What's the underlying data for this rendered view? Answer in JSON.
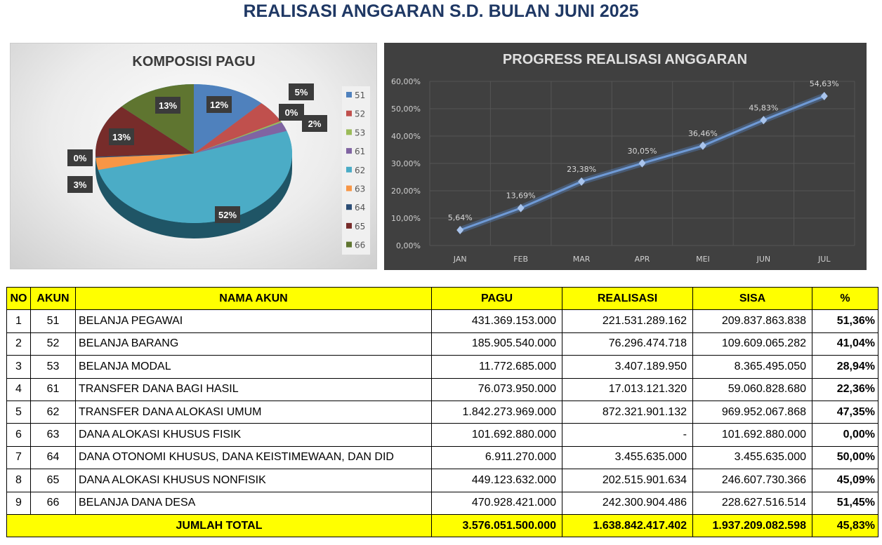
{
  "title": "REALISASI ANGGARAN S.D. BULAN JUNI 2025",
  "chart_data": [
    {
      "type": "pie",
      "title": "KOMPOSISI PAGU",
      "categories": [
        "51",
        "52",
        "53",
        "61",
        "62",
        "63",
        "64",
        "65",
        "66"
      ],
      "values": [
        431369153000,
        185905540000,
        11772685000,
        76073950000,
        1842273969000,
        101692880000,
        6911270000,
        449123632000,
        470928421000
      ],
      "labels": [
        "12%",
        "5%",
        "0%",
        "2%",
        "52%",
        "3%",
        "0%",
        "13%",
        "13%"
      ],
      "colors": [
        "#4f81bd",
        "#c0504d",
        "#9bbb59",
        "#8064a2",
        "#4bacc6",
        "#f79646",
        "#2c4d75",
        "#772c2a",
        "#5f7530"
      ],
      "legend": "right"
    },
    {
      "type": "line",
      "title": "PROGRESS REALISASI ANGGARAN",
      "categories": [
        "JAN",
        "FEB",
        "MAR",
        "APR",
        "MEI",
        "JUN",
        "JUL"
      ],
      "values": [
        5.64,
        13.69,
        23.38,
        30.05,
        36.46,
        45.83,
        54.63
      ],
      "labels": [
        "5,64%",
        "13,69%",
        "23,38%",
        "30,05%",
        "36,46%",
        "45,83%",
        "54,63%"
      ],
      "yticks": [
        "0,00%",
        "10,00%",
        "20,00%",
        "30,00%",
        "40,00%",
        "50,00%",
        "60,00%"
      ],
      "ylim": [
        0,
        60
      ],
      "grid": true,
      "color": "#6f9ad6"
    }
  ],
  "table": {
    "headers": [
      "NO",
      "AKUN",
      "NAMA AKUN",
      "PAGU",
      "REALISASI",
      "SISA",
      "%"
    ],
    "rows": [
      [
        "1",
        "51",
        "BELANJA PEGAWAI",
        "431.369.153.000",
        "221.531.289.162",
        "209.837.863.838",
        "51,36%"
      ],
      [
        "2",
        "52",
        "BELANJA BARANG",
        "185.905.540.000",
        "76.296.474.718",
        "109.609.065.282",
        "41,04%"
      ],
      [
        "3",
        "53",
        "BELANJA MODAL",
        "11.772.685.000",
        "3.407.189.950",
        "8.365.495.050",
        "28,94%"
      ],
      [
        "4",
        "61",
        "TRANSFER DANA BAGI HASIL",
        "76.073.950.000",
        "17.013.121.320",
        "59.060.828.680",
        "22,36%"
      ],
      [
        "5",
        "62",
        "TRANSFER DANA ALOKASI UMUM",
        "1.842.273.969.000",
        "872.321.901.132",
        "969.952.067.868",
        "47,35%"
      ],
      [
        "6",
        "63",
        "DANA ALOKASI KHUSUS FISIK",
        "101.692.880.000",
        "-",
        "101.692.880.000",
        "0,00%"
      ],
      [
        "7",
        "64",
        "DANA OTONOMI KHUSUS, DANA KEISTIMEWAAN, DAN DID",
        "6.911.270.000",
        "3.455.635.000",
        "3.455.635.000",
        "50,00%"
      ],
      [
        "8",
        "65",
        "DANA ALOKASI KHUSUS NONFISIK",
        "449.123.632.000",
        "202.515.901.634",
        "246.607.730.366",
        "45,09%"
      ],
      [
        "9",
        "66",
        "BELANJA DANA DESA",
        "470.928.421.000",
        "242.300.904.486",
        "228.627.516.514",
        "51,45%"
      ]
    ],
    "total": {
      "label": "JUMLAH TOTAL",
      "pagu": "3.576.051.500.000",
      "realisasi": "1.638.842.417.402",
      "sisa": "1.937.209.082.598",
      "pct": "45,83%"
    }
  }
}
